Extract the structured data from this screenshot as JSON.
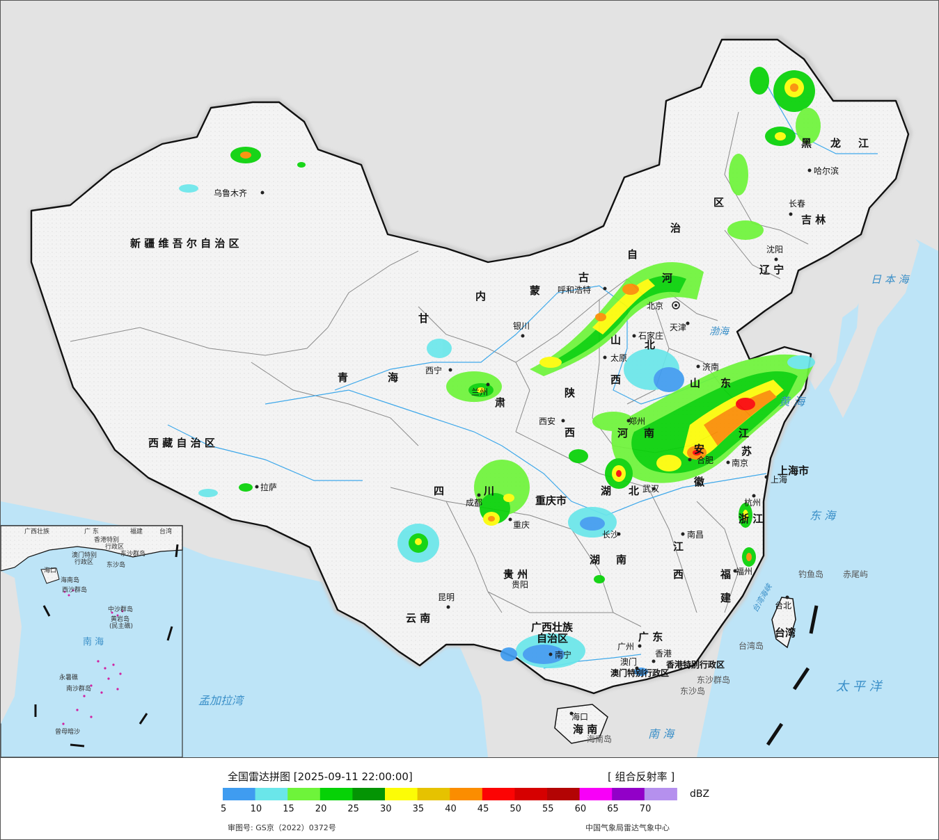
{
  "map": {
    "province_labels": [
      {
        "id": "xinjiang",
        "text": "新 疆 维 吾 尔 自 治 区"
      },
      {
        "id": "xizang",
        "text": "西 藏 自 治 区"
      },
      {
        "id": "qinghai1",
        "text": "青"
      },
      {
        "id": "qinghai2",
        "text": "海"
      },
      {
        "id": "gansu1",
        "text": "甘"
      },
      {
        "id": "gansu2",
        "text": "肃"
      },
      {
        "id": "nmg1",
        "text": "内"
      },
      {
        "id": "nmg2",
        "text": "蒙"
      },
      {
        "id": "nmg3",
        "text": "古"
      },
      {
        "id": "nmg4",
        "text": "自"
      },
      {
        "id": "nmg5",
        "text": "治"
      },
      {
        "id": "nmg6",
        "text": "区"
      },
      {
        "id": "hlj1",
        "text": "黑"
      },
      {
        "id": "hlj2",
        "text": "龙"
      },
      {
        "id": "hlj3",
        "text": "江"
      },
      {
        "id": "jilin",
        "text": "吉 林"
      },
      {
        "id": "liaoning",
        "text": "辽 宁"
      },
      {
        "id": "hebei1",
        "text": "河"
      },
      {
        "id": "hebei2",
        "text": "北"
      },
      {
        "id": "shanxi1",
        "text": "山"
      },
      {
        "id": "shanxi2",
        "text": "西"
      },
      {
        "id": "shaanxi1",
        "text": "陕"
      },
      {
        "id": "shaanxi2",
        "text": "西"
      },
      {
        "id": "henan1",
        "text": "河"
      },
      {
        "id": "henan2",
        "text": "南"
      },
      {
        "id": "shandong1",
        "text": "山"
      },
      {
        "id": "shandong2",
        "text": "东"
      },
      {
        "id": "jiangsu1",
        "text": "江"
      },
      {
        "id": "jiangsu2",
        "text": "苏"
      },
      {
        "id": "anhui1",
        "text": "安"
      },
      {
        "id": "anhui2",
        "text": "徽"
      },
      {
        "id": "hubei1",
        "text": "湖"
      },
      {
        "id": "hubei2",
        "text": "北"
      },
      {
        "id": "sichuan1",
        "text": "四"
      },
      {
        "id": "sichuan2",
        "text": "川"
      },
      {
        "id": "chongqing",
        "text": "重庆市"
      },
      {
        "id": "hunan1",
        "text": "湖"
      },
      {
        "id": "hunan2",
        "text": "南"
      },
      {
        "id": "jiangxi1",
        "text": "江"
      },
      {
        "id": "jiangxi2",
        "text": "西"
      },
      {
        "id": "zhejiang",
        "text": "浙 江"
      },
      {
        "id": "fujian1",
        "text": "福"
      },
      {
        "id": "fujian2",
        "text": "建"
      },
      {
        "id": "guizhou",
        "text": "贵 州"
      },
      {
        "id": "yunnan",
        "text": "云 南"
      },
      {
        "id": "guangxi1",
        "text": "广西壮族"
      },
      {
        "id": "guangxi2",
        "text": "自治区"
      },
      {
        "id": "guangdong",
        "text": "广 东"
      },
      {
        "id": "hainan",
        "text": "海 南"
      },
      {
        "id": "shanghai",
        "text": "上海市"
      },
      {
        "id": "taiwan",
        "text": "台湾"
      },
      {
        "id": "hk_sar",
        "text": "香港特别行政区"
      },
      {
        "id": "mo_sar",
        "text": "澳门特别行政区"
      }
    ],
    "cities": [
      {
        "id": "urumqi",
        "text": "乌鲁木齐"
      },
      {
        "id": "lhasa",
        "text": "拉萨"
      },
      {
        "id": "xining",
        "text": "西宁"
      },
      {
        "id": "lanzhou",
        "text": "兰州"
      },
      {
        "id": "yinchuan",
        "text": "银川"
      },
      {
        "id": "hohhot",
        "text": "呼和浩特"
      },
      {
        "id": "beijing",
        "text": "北京"
      },
      {
        "id": "tianjin",
        "text": "天津"
      },
      {
        "id": "shijiazhuang",
        "text": "石家庄"
      },
      {
        "id": "taiyuan",
        "text": "太原"
      },
      {
        "id": "xian",
        "text": "西安"
      },
      {
        "id": "zhengzhou",
        "text": "郑州"
      },
      {
        "id": "jinan",
        "text": "济南"
      },
      {
        "id": "hefei",
        "text": "合肥"
      },
      {
        "id": "nanjing",
        "text": "南京"
      },
      {
        "id": "shanghai",
        "text": "上海"
      },
      {
        "id": "hangzhou",
        "text": "杭州"
      },
      {
        "id": "wuhan",
        "text": "武汉"
      },
      {
        "id": "chengdu",
        "text": "成都"
      },
      {
        "id": "chongqing",
        "text": "重庆"
      },
      {
        "id": "changsha",
        "text": "长沙"
      },
      {
        "id": "nanchang",
        "text": "南昌"
      },
      {
        "id": "fuzhou",
        "text": "福州"
      },
      {
        "id": "guiyang",
        "text": "贵阳"
      },
      {
        "id": "kunming",
        "text": "昆明"
      },
      {
        "id": "nanning",
        "text": "南宁"
      },
      {
        "id": "guangzhou",
        "text": "广州"
      },
      {
        "id": "hongkong",
        "text": "香港"
      },
      {
        "id": "macau",
        "text": "澳门"
      },
      {
        "id": "haikou",
        "text": "海口"
      },
      {
        "id": "taipei",
        "text": "台北"
      },
      {
        "id": "shenyang",
        "text": "沈阳"
      },
      {
        "id": "changchun",
        "text": "长春"
      },
      {
        "id": "harbin",
        "text": "哈尔滨"
      }
    ],
    "water_labels": [
      {
        "id": "bohai",
        "text": "渤海"
      },
      {
        "id": "huanghai",
        "text": "黄 海"
      },
      {
        "id": "donghai",
        "text": "东 海"
      },
      {
        "id": "nanhai",
        "text": "南 海"
      },
      {
        "id": "japan_sea",
        "text": "日 本 海"
      },
      {
        "id": "pacific",
        "text": "太 平 洋"
      },
      {
        "id": "bengal",
        "text": "孟加拉湾"
      },
      {
        "id": "taiwan_strait",
        "text": "台湾海峡"
      }
    ],
    "island_labels": [
      {
        "id": "diaoyu",
        "text": "钓鱼岛"
      },
      {
        "id": "chiwei",
        "text": "赤尾屿"
      },
      {
        "id": "dongsha_qd",
        "text": "东沙群岛"
      },
      {
        "id": "dongsha",
        "text": "东沙岛"
      },
      {
        "id": "taiwan_island",
        "text": "台湾岛"
      },
      {
        "id": "hainan_island",
        "text": "海南岛"
      }
    ],
    "inset": {
      "labels": [
        {
          "id": "in_gx",
          "text": "广西壮族"
        },
        {
          "id": "in_gd",
          "text": "广 东"
        },
        {
          "id": "in_fj",
          "text": "福建"
        },
        {
          "id": "in_tw",
          "text": "台湾"
        },
        {
          "id": "in_hk",
          "text": "香港特别"
        },
        {
          "id": "in_hk2",
          "text": "行政区"
        },
        {
          "id": "in_mo",
          "text": "澳门特别"
        },
        {
          "id": "in_mo2",
          "text": "行政区"
        },
        {
          "id": "in_dsqd",
          "text": "东沙群岛"
        },
        {
          "id": "in_dsd",
          "text": "东沙岛"
        },
        {
          "id": "in_hn",
          "text": "海口"
        },
        {
          "id": "in_hnd",
          "text": "海南岛"
        },
        {
          "id": "in_xs",
          "text": "西沙群岛"
        },
        {
          "id": "in_zs",
          "text": "中沙群岛"
        },
        {
          "id": "in_hy",
          "text": "黄岩岛"
        },
        {
          "id": "in_hy2",
          "text": "(民主礁)"
        },
        {
          "id": "in_nh",
          "text": "南   海"
        },
        {
          "id": "in_ns",
          "text": "南沙群岛"
        },
        {
          "id": "in_ym",
          "text": "永暑礁"
        },
        {
          "id": "in_zm",
          "text": "曾母暗沙"
        }
      ]
    }
  },
  "legend": {
    "title": "全国雷达拼图 [2025-09-11 22:00:00]",
    "product": "[ 组合反射率 ]",
    "unit": "dBZ",
    "ticks": [
      "5",
      "10",
      "15",
      "20",
      "25",
      "30",
      "35",
      "40",
      "45",
      "50",
      "55",
      "60",
      "65",
      "70"
    ],
    "colors": [
      "#3f9cf0",
      "#6ae6ea",
      "#6ef43a",
      "#06d206",
      "#049404",
      "#fcfc06",
      "#e6c200",
      "#fb8d00",
      "#fc0404",
      "#d60000",
      "#b30404",
      "#f800f8",
      "#9200c8",
      "#b590ee"
    ],
    "review_number": "审图号: GS京（2022）0372号",
    "agency": "中国气象局雷达气象中心"
  }
}
